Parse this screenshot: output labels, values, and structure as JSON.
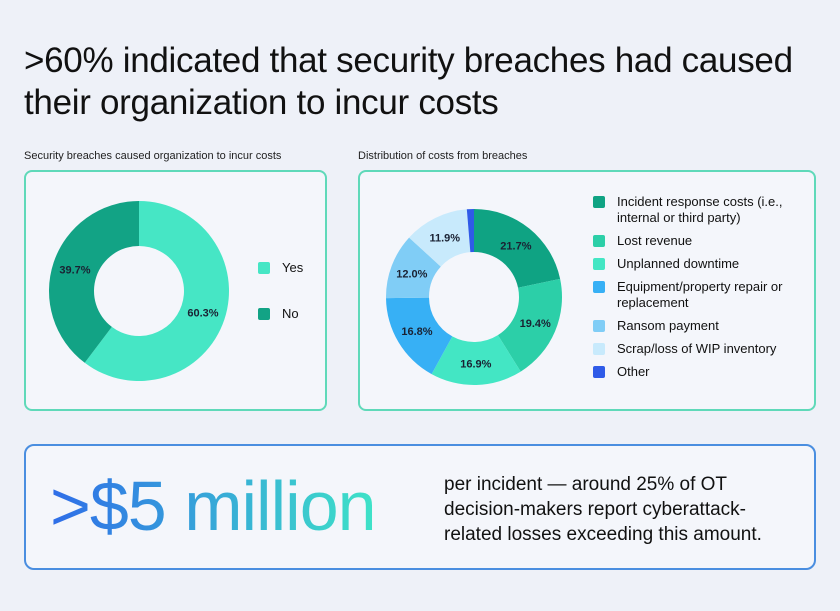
{
  "title": ">60% indicated that security breaches had caused their organization to incur costs",
  "chart_data": [
    {
      "type": "pie",
      "donut": true,
      "title": "Security breaches caused organization to incur costs",
      "categories": [
        "Yes",
        "No"
      ],
      "values": [
        60.3,
        39.7
      ],
      "labels": [
        "60.3%",
        "39.7%"
      ],
      "colors": [
        "#46e6c5",
        "#12a385"
      ],
      "legend": "right"
    },
    {
      "type": "pie",
      "donut": true,
      "title": "Distribution of costs from breaches",
      "categories": [
        "Incident response costs (i.e., internal or third party)",
        "Lost revenue",
        "Unplanned downtime",
        "Equipment/property repair or replacement",
        "Ransom payment",
        "Scrap/loss of WIP inventory",
        "Other"
      ],
      "values": [
        21.7,
        19.4,
        16.9,
        16.8,
        12.0,
        11.9,
        1.3
      ],
      "labels": [
        "21.7%",
        "19.4%",
        "16.9%",
        "16.8%",
        "12.0%",
        "11.9%",
        ""
      ],
      "colors": [
        "#0fa383",
        "#2ccfa8",
        "#43e6c4",
        "#37b0f5",
        "#80cdf6",
        "#c8eafc",
        "#2f5be8"
      ],
      "legend": "right"
    }
  ],
  "callout": {
    "value": ">$5 million",
    "text": "per incident — around 25% of OT decision-makers report cyberattack-related losses exceeding this amount."
  }
}
